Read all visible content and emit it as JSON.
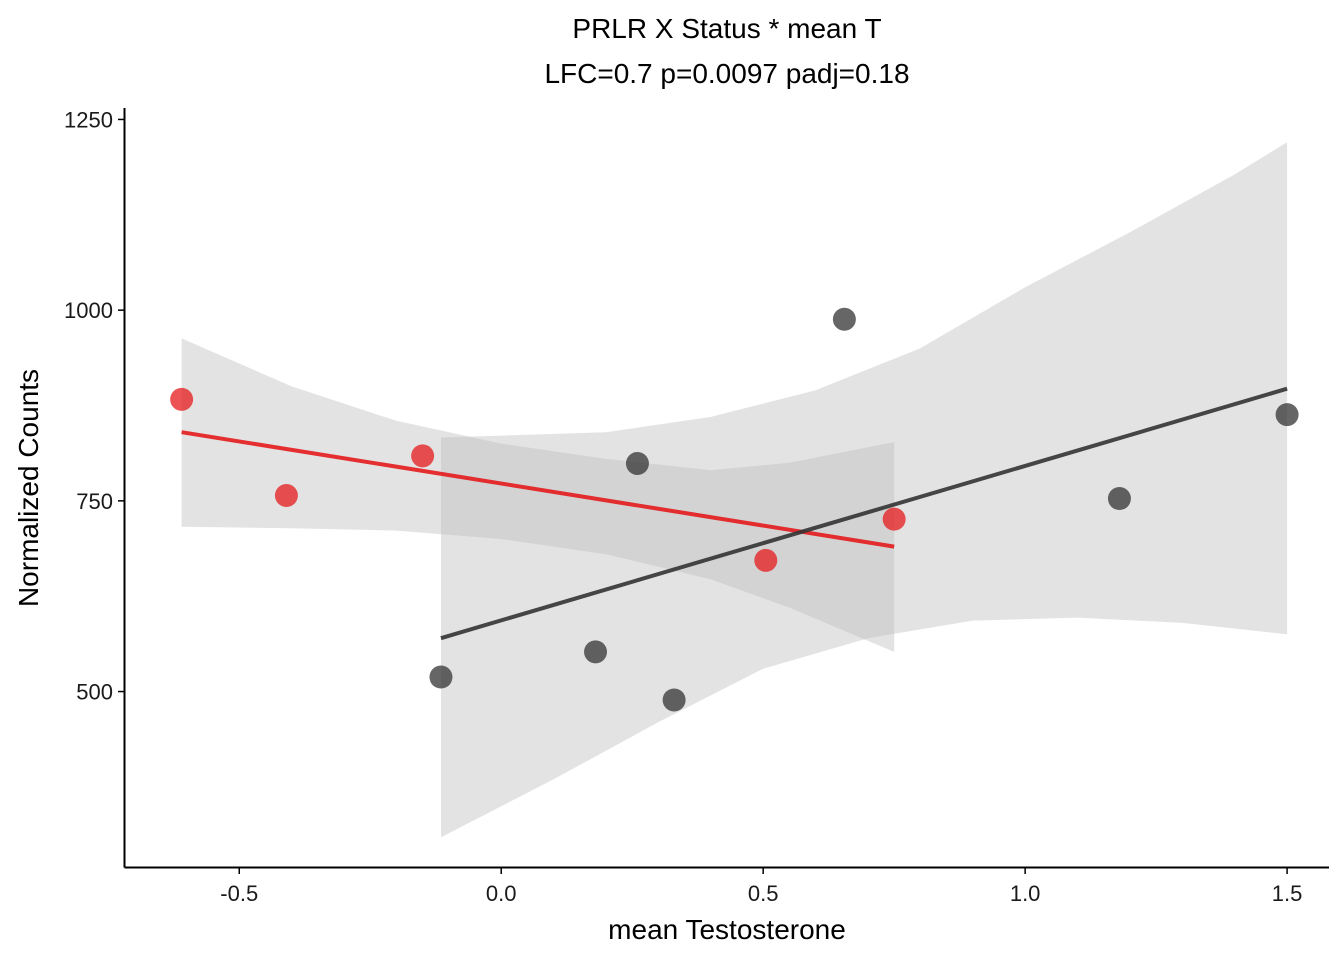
{
  "chart_data": {
    "type": "scatter",
    "title": "PRLR X Status * mean T",
    "subtitle": "LFC=0.7 p=0.0097 padj=0.18",
    "xlabel": "mean Testosterone",
    "ylabel": "Normalized Counts",
    "xlim": [
      -0.72,
      1.58
    ],
    "ylim": [
      270,
      1265
    ],
    "x_ticks": [
      -0.5,
      0.0,
      0.5,
      1.0,
      1.5
    ],
    "x_tick_labels": [
      "-0.5",
      "0.0",
      "0.5",
      "1.0",
      "1.5"
    ],
    "y_ticks": [
      500,
      750,
      1000,
      1250
    ],
    "y_tick_labels": [
      "500",
      "750",
      "1000",
      "1250"
    ],
    "grid": false,
    "legend": "none",
    "colors": {
      "red": "#E41A1C",
      "dark": "#333333",
      "band": "#BDBDBD"
    },
    "series": [
      {
        "color": "red",
        "points": [
          {
            "x": -0.61,
            "y": 883
          },
          {
            "x": -0.41,
            "y": 757
          },
          {
            "x": -0.15,
            "y": 809
          },
          {
            "x": 0.505,
            "y": 672
          },
          {
            "x": 0.75,
            "y": 726
          }
        ],
        "fit": {
          "x0": -0.61,
          "y0": 840,
          "x1": 0.75,
          "y1": 690
        },
        "ci_upper": [
          [
            -0.61,
            963
          ],
          [
            -0.4,
            900
          ],
          [
            -0.2,
            855
          ],
          [
            0.0,
            825
          ],
          [
            0.2,
            805
          ],
          [
            0.4,
            790
          ],
          [
            0.55,
            800
          ],
          [
            0.75,
            827
          ]
        ],
        "ci_lower": [
          [
            -0.61,
            716
          ],
          [
            -0.4,
            714
          ],
          [
            -0.2,
            711
          ],
          [
            0.0,
            700
          ],
          [
            0.2,
            680
          ],
          [
            0.4,
            647
          ],
          [
            0.55,
            610
          ],
          [
            0.75,
            552
          ]
        ]
      },
      {
        "color": "dark",
        "points": [
          {
            "x": -0.115,
            "y": 519
          },
          {
            "x": 0.18,
            "y": 552
          },
          {
            "x": 0.26,
            "y": 799
          },
          {
            "x": 0.33,
            "y": 489
          },
          {
            "x": 0.655,
            "y": 988
          },
          {
            "x": 1.18,
            "y": 753
          },
          {
            "x": 1.5,
            "y": 863
          }
        ],
        "fit": {
          "x0": -0.115,
          "y0": 570,
          "x1": 1.5,
          "y1": 897
        },
        "ci_upper": [
          [
            -0.115,
            833
          ],
          [
            0.2,
            840
          ],
          [
            0.4,
            860
          ],
          [
            0.6,
            895
          ],
          [
            0.8,
            950
          ],
          [
            1.0,
            1030
          ],
          [
            1.2,
            1102
          ],
          [
            1.4,
            1178
          ],
          [
            1.5,
            1220
          ]
        ],
        "ci_lower": [
          [
            -0.115,
            309
          ],
          [
            0.1,
            385
          ],
          [
            0.3,
            460
          ],
          [
            0.5,
            530
          ],
          [
            0.7,
            570
          ],
          [
            0.9,
            593
          ],
          [
            1.1,
            597
          ],
          [
            1.3,
            590
          ],
          [
            1.5,
            575
          ]
        ]
      }
    ]
  }
}
